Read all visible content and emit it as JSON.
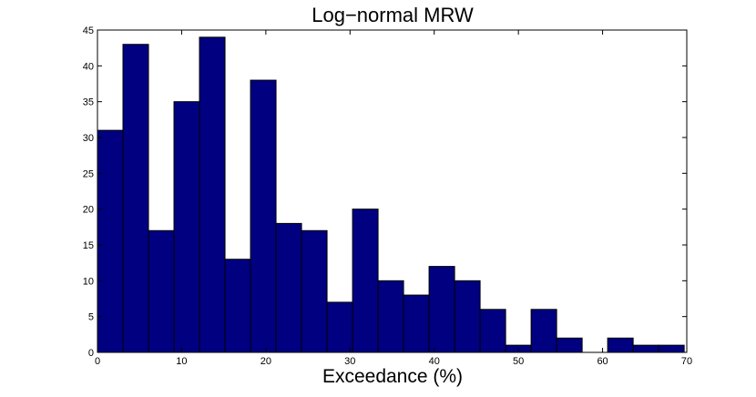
{
  "chart_data": {
    "type": "bar",
    "title": "Log−normal MRW",
    "xlabel": "Exceedance (%)",
    "ylabel": "",
    "xlim": [
      0,
      70
    ],
    "ylim": [
      0,
      45
    ],
    "xticks": [
      0,
      10,
      20,
      30,
      40,
      50,
      60,
      70
    ],
    "yticks": [
      0,
      5,
      10,
      15,
      20,
      25,
      30,
      35,
      40,
      45
    ],
    "grid": false,
    "bar_color": "#000080",
    "bin_width": 3.03,
    "bin_edges": [
      0,
      3.03,
      6.06,
      9.09,
      12.12,
      15.15,
      18.18,
      21.21,
      24.24,
      27.27,
      30.3,
      33.33,
      36.36,
      39.39,
      42.42,
      45.45,
      48.48,
      51.51,
      54.54,
      57.57,
      60.6,
      63.63,
      66.66,
      69.69
    ],
    "values": [
      31,
      43,
      17,
      35,
      44,
      13,
      38,
      18,
      17,
      7,
      20,
      10,
      8,
      12,
      10,
      6,
      1,
      6,
      2,
      0,
      2,
      1,
      1
    ]
  }
}
